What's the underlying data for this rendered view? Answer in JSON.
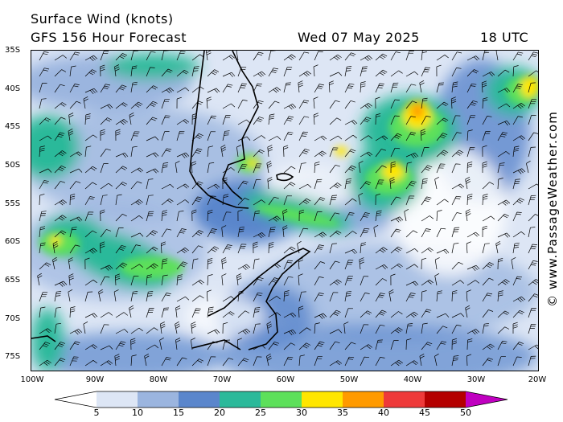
{
  "header": {
    "title": "Surface Wind (knots)",
    "forecast": "GFS 156 Hour Forecast",
    "date": "Wed 07 May 2025",
    "time": "18 UTC"
  },
  "map": {
    "lat_labels": [
      "35S",
      "40S",
      "45S",
      "50S",
      "55S",
      "60S",
      "65S",
      "70S",
      "75S"
    ],
    "lon_labels": [
      "100W",
      "90W",
      "80W",
      "70W",
      "60W",
      "50W",
      "40W",
      "30W",
      "20W"
    ],
    "credit": "© www.PassageWeather.com"
  },
  "legend": {
    "ticks": [
      "5",
      "10",
      "15",
      "20",
      "25",
      "30",
      "35",
      "40",
      "45",
      "50"
    ],
    "colors": [
      "#ffffff",
      "#dde6f5",
      "#9bb5df",
      "#5a86cc",
      "#2bb99a",
      "#5de05a",
      "#ffe600",
      "#ff9a00",
      "#ee3a3a",
      "#b40000",
      "#c000c0"
    ]
  }
}
